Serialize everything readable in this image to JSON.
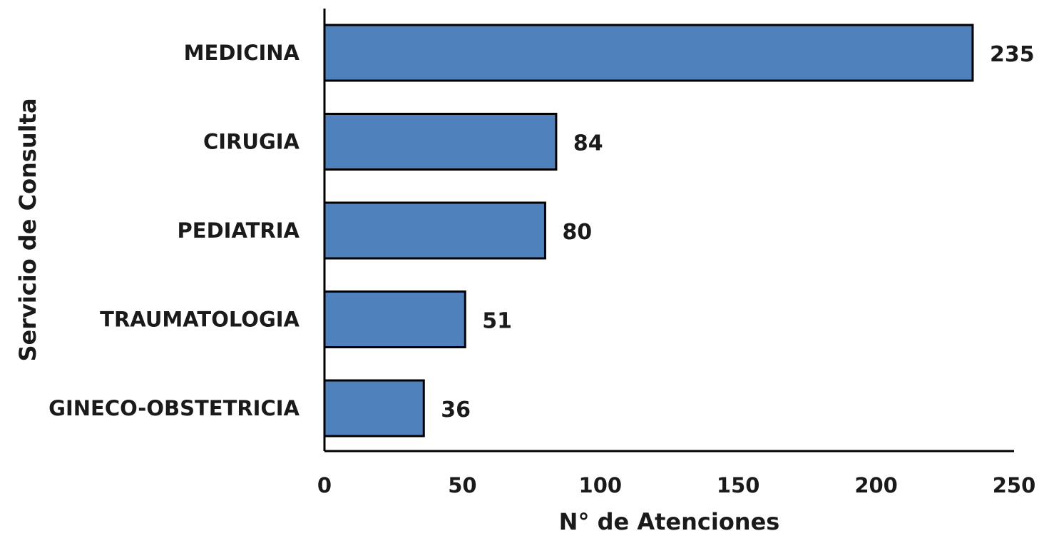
{
  "chart_data": {
    "type": "bar",
    "orientation": "horizontal",
    "categories": [
      "MEDICINA",
      "CIRUGIA",
      "PEDIATRIA",
      "TRAUMATOLOGIA",
      "GINECO-OBSTETRICIA"
    ],
    "values": [
      235,
      84,
      80,
      51,
      36
    ],
    "data_labels": [
      "235",
      "84",
      "80",
      "51",
      "36"
    ],
    "xlabel": "N° de Atenciones",
    "ylabel": "Servicio de Consulta",
    "xlim": [
      0,
      250
    ],
    "xticks": [
      0,
      50,
      100,
      150,
      200,
      250
    ],
    "xtick_labels": [
      "0",
      "50",
      "100",
      "150",
      "200",
      "250"
    ],
    "grid": false,
    "legend": "none",
    "bar_color": "#4f81bd",
    "bar_edge_color": "#000000"
  }
}
